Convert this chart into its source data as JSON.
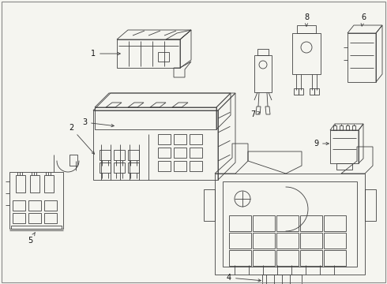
{
  "bg_color": "#f5f5f0",
  "line_color": "#404040",
  "label_color": "#111111",
  "figsize": [
    4.9,
    3.6
  ],
  "dpi": 100,
  "border_color": "#888888"
}
